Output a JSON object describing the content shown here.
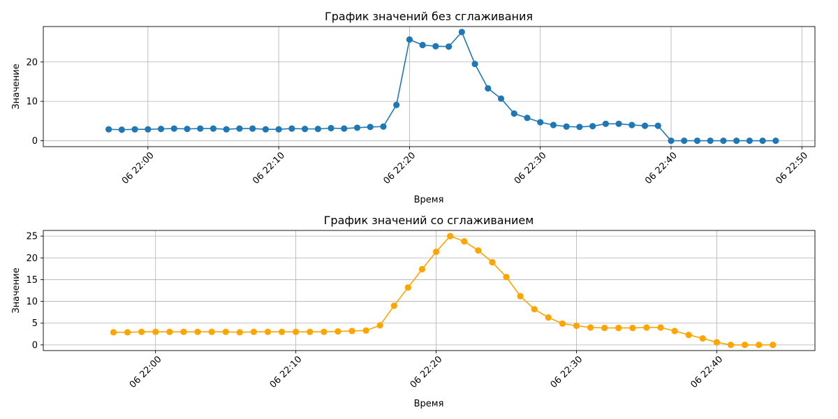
{
  "chart_data": [
    {
      "type": "line",
      "title": "График значений без сглаживания",
      "xlabel": "Время",
      "ylabel": "Значение",
      "color": "#1f77b4",
      "marker": "circle",
      "grid": true,
      "x": [
        "21:57",
        "21:58",
        "21:59",
        "22:00",
        "22:01",
        "22:02",
        "22:03",
        "22:04",
        "22:05",
        "22:06",
        "22:07",
        "22:08",
        "22:09",
        "22:10",
        "22:11",
        "22:12",
        "22:13",
        "22:14",
        "22:15",
        "22:16",
        "22:17",
        "22:18",
        "22:19",
        "22:20",
        "22:21",
        "22:22",
        "22:23",
        "22:24",
        "22:25",
        "22:26",
        "22:27",
        "22:28",
        "22:29",
        "22:30",
        "22:31",
        "22:32",
        "22:33",
        "22:34",
        "22:35",
        "22:36",
        "22:37",
        "22:38",
        "22:39",
        "22:40",
        "22:41",
        "22:42",
        "22:43",
        "22:44",
        "22:45",
        "22:46",
        "22:47",
        "22:48"
      ],
      "values": [
        2.9,
        2.8,
        2.9,
        2.9,
        3.0,
        3.1,
        3.0,
        3.1,
        3.1,
        2.9,
        3.1,
        3.1,
        2.9,
        2.9,
        3.1,
        3.0,
        3.0,
        3.2,
        3.1,
        3.3,
        3.5,
        3.6,
        9.1,
        25.7,
        24.3,
        24.0,
        23.9,
        27.6,
        19.5,
        13.3,
        10.7,
        6.9,
        5.8,
        4.7,
        4.0,
        3.6,
        3.5,
        3.7,
        4.3,
        4.3,
        4.0,
        3.8,
        3.8,
        0.0,
        0.0,
        0.0,
        0.0,
        0.0,
        0.0,
        0.0,
        0.0,
        0.0
      ],
      "xlim": [
        "21:52",
        "22:51"
      ],
      "ylim": [
        -1.5,
        29.0
      ],
      "x_ticks": [
        {
          "t": "22:00",
          "label": "06 22:00"
        },
        {
          "t": "22:10",
          "label": "06 22:10"
        },
        {
          "t": "22:20",
          "label": "06 22:20"
        },
        {
          "t": "22:30",
          "label": "06 22:30"
        },
        {
          "t": "22:40",
          "label": "06 22:40"
        },
        {
          "t": "22:50",
          "label": "06 22:50"
        }
      ],
      "y_ticks": [
        {
          "v": 0,
          "label": "0"
        },
        {
          "v": 10,
          "label": "10"
        },
        {
          "v": 20,
          "label": "20"
        }
      ]
    },
    {
      "type": "line",
      "title": "График значений со сглаживанием",
      "xlabel": "Время",
      "ylabel": "Значение",
      "color": "#ffa500",
      "marker": "circle",
      "grid": true,
      "x": [
        "21:57",
        "21:58",
        "21:59",
        "22:00",
        "22:01",
        "22:02",
        "22:03",
        "22:04",
        "22:05",
        "22:06",
        "22:07",
        "22:08",
        "22:09",
        "22:10",
        "22:11",
        "22:12",
        "22:13",
        "22:14",
        "22:15",
        "22:16",
        "22:17",
        "22:18",
        "22:19",
        "22:20",
        "22:21",
        "22:22",
        "22:23",
        "22:24",
        "22:25",
        "22:26",
        "22:27",
        "22:28",
        "22:29",
        "22:30",
        "22:31",
        "22:32",
        "22:33",
        "22:34",
        "22:35",
        "22:36",
        "22:37",
        "22:38",
        "22:39",
        "22:40",
        "22:41",
        "22:42",
        "22:43",
        "22:44"
      ],
      "values": [
        2.9,
        2.9,
        3.0,
        3.0,
        3.0,
        3.0,
        3.0,
        3.0,
        3.0,
        2.9,
        3.0,
        3.0,
        3.0,
        3.0,
        3.0,
        3.0,
        3.1,
        3.2,
        3.3,
        4.5,
        9.0,
        13.2,
        17.4,
        21.4,
        25.0,
        23.8,
        21.7,
        19.0,
        15.6,
        11.2,
        8.2,
        6.3,
        4.9,
        4.4,
        4.0,
        3.9,
        3.9,
        3.9,
        4.0,
        4.0,
        3.2,
        2.3,
        1.5,
        0.6,
        0.0,
        0.0,
        0.0,
        0.0
      ],
      "xlim": [
        "21:52",
        "22:47"
      ],
      "ylim": [
        -1.3,
        26.3
      ],
      "x_ticks": [
        {
          "t": "22:00",
          "label": "06 22:00"
        },
        {
          "t": "22:10",
          "label": "06 22:10"
        },
        {
          "t": "22:20",
          "label": "06 22:20"
        },
        {
          "t": "22:30",
          "label": "06 22:30"
        },
        {
          "t": "22:40",
          "label": "06 22:40"
        }
      ],
      "y_ticks": [
        {
          "v": 0,
          "label": "0"
        },
        {
          "v": 5,
          "label": "5"
        },
        {
          "v": 10,
          "label": "10"
        },
        {
          "v": 15,
          "label": "15"
        },
        {
          "v": 20,
          "label": "20"
        },
        {
          "v": 25,
          "label": "25"
        }
      ]
    }
  ]
}
